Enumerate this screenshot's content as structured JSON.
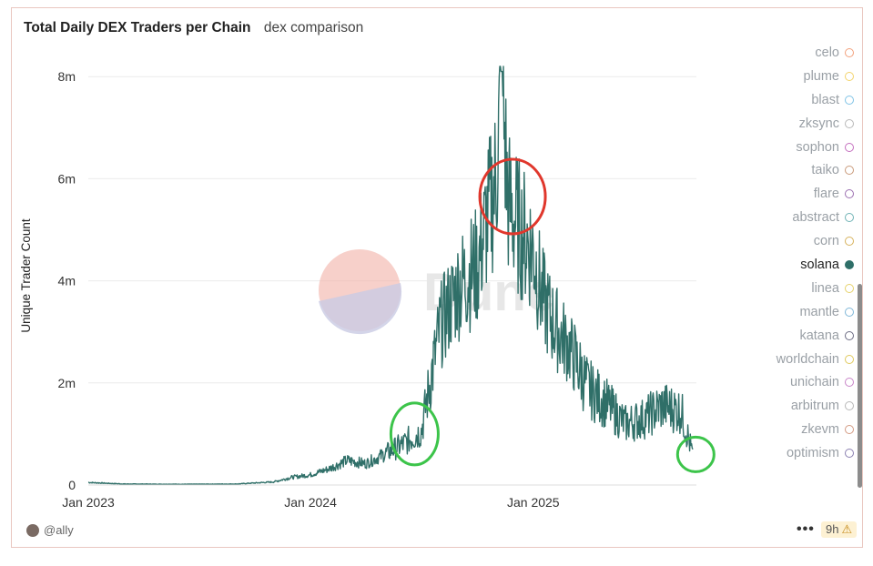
{
  "header": {
    "title": "Total Daily DEX Traders per Chain",
    "subtitle": "dex comparison"
  },
  "footer": {
    "user": "@ally",
    "more_label": "•••",
    "age": "9h",
    "warn_icon": "warning-icon"
  },
  "watermark": {
    "text": "Dune",
    "colors": [
      "#f3b7ad",
      "#c9cbe4"
    ]
  },
  "legend": [
    {
      "name": "celo",
      "color": "#f2a07b",
      "active": false
    },
    {
      "name": "plume",
      "color": "#f3d36b",
      "active": false
    },
    {
      "name": "blast",
      "color": "#7fc3e6",
      "active": false
    },
    {
      "name": "zksync",
      "color": "#b8b8b8",
      "active": false
    },
    {
      "name": "sophon",
      "color": "#c46fbe",
      "active": false
    },
    {
      "name": "taiko",
      "color": "#c99a7a",
      "active": false
    },
    {
      "name": "flare",
      "color": "#9b6fb0",
      "active": false
    },
    {
      "name": "abstract",
      "color": "#6fb3b5",
      "active": false
    },
    {
      "name": "corn",
      "color": "#d7b25c",
      "active": false
    },
    {
      "name": "solana",
      "color": "#2f6f68",
      "active": true
    },
    {
      "name": "linea",
      "color": "#e6d26a",
      "active": false
    },
    {
      "name": "mantle",
      "color": "#7fb7d8",
      "active": false
    },
    {
      "name": "katana",
      "color": "#6b6b82",
      "active": false
    },
    {
      "name": "worldchain",
      "color": "#e0c95c",
      "active": false
    },
    {
      "name": "unichain",
      "color": "#c884c8",
      "active": false
    },
    {
      "name": "arbitrum",
      "color": "#b7b7b7",
      "active": false
    },
    {
      "name": "zkevm",
      "color": "#d39a82",
      "active": false
    },
    {
      "name": "optimism",
      "color": "#8a7fb0",
      "active": false
    }
  ],
  "chart_data": {
    "type": "line",
    "title": "Total Daily DEX Traders per Chain",
    "subtitle": "dex comparison",
    "xlabel": "",
    "ylabel": "Unique Trader Count",
    "x_ticks": [
      "Jan 2023",
      "Jan 2024",
      "Jan 2025"
    ],
    "y_ticks": [
      "0",
      "2m",
      "4m",
      "6m",
      "8m"
    ],
    "ylim": [
      0,
      8200000
    ],
    "grid": true,
    "legend_position": "right",
    "series": [
      {
        "name": "solana",
        "color": "#2f6f68",
        "points": [
          [
            "2023-01-01",
            50000
          ],
          [
            "2023-03-01",
            20000
          ],
          [
            "2023-06-01",
            15000
          ],
          [
            "2023-09-01",
            20000
          ],
          [
            "2023-11-01",
            60000
          ],
          [
            "2023-12-01",
            150000
          ],
          [
            "2024-01-01",
            200000
          ],
          [
            "2024-02-01",
            320000
          ],
          [
            "2024-03-01",
            480000
          ],
          [
            "2024-04-01",
            420000
          ],
          [
            "2024-05-01",
            600000
          ],
          [
            "2024-06-01",
            800000
          ],
          [
            "2024-07-01",
            1050000
          ],
          [
            "2024-08-01",
            3100000
          ],
          [
            "2024-09-01",
            3900000
          ],
          [
            "2024-10-01",
            4300000
          ],
          [
            "2024-11-01",
            6000000
          ],
          [
            "2024-11-10",
            8100000
          ],
          [
            "2024-11-20",
            5600000
          ],
          [
            "2024-12-01",
            5200000
          ],
          [
            "2025-01-01",
            4600000
          ],
          [
            "2025-01-15",
            3700000
          ],
          [
            "2025-02-01",
            3200000
          ],
          [
            "2025-03-01",
            2700000
          ],
          [
            "2025-04-01",
            1900000
          ],
          [
            "2025-05-01",
            1600000
          ],
          [
            "2025-06-01",
            1200000
          ],
          [
            "2025-07-01",
            1300000
          ],
          [
            "2025-08-01",
            1550000
          ],
          [
            "2025-09-01",
            1450000
          ],
          [
            "2025-09-20",
            600000
          ]
        ]
      }
    ],
    "annotations": [
      {
        "shape": "circle",
        "color": "#e0372c",
        "at": [
          "2024-11-28",
          5650000
        ]
      },
      {
        "shape": "circle",
        "color": "#3cc44a",
        "at": [
          "2024-06-20",
          1000000
        ]
      },
      {
        "shape": "circle",
        "color": "#3cc44a",
        "at": [
          "2025-09-25",
          600000
        ]
      }
    ]
  }
}
